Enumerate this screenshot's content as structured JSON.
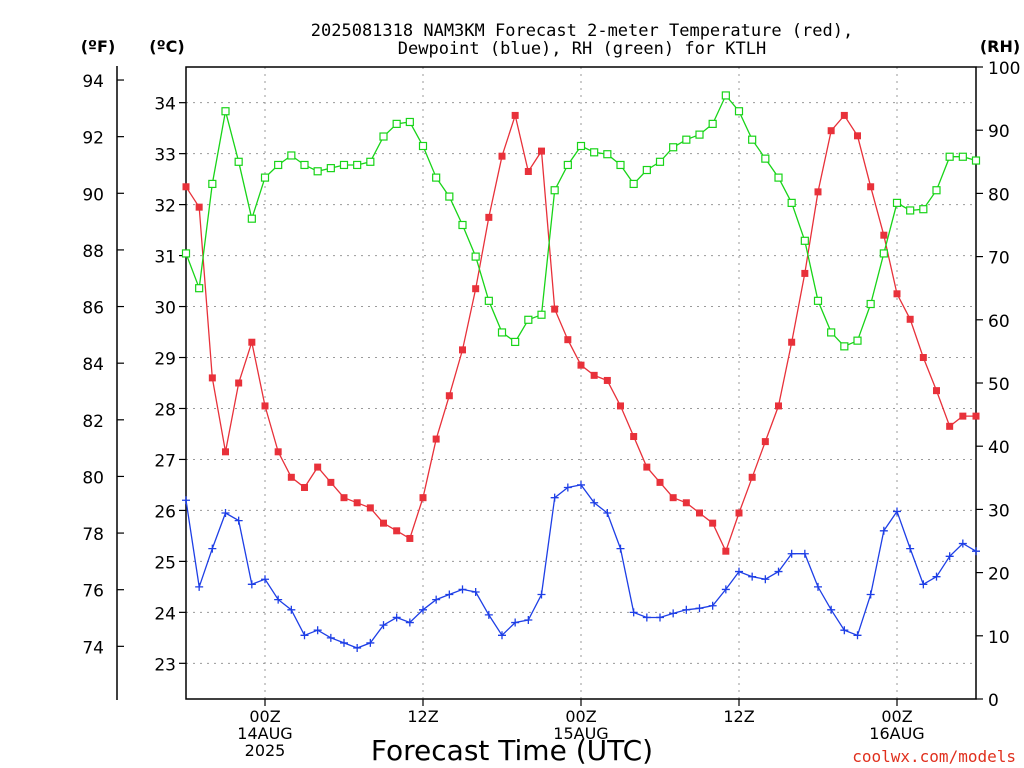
{
  "chart_data": {
    "type": "line",
    "title_line1": "2025081318 NAM3KM Forecast 2-meter Temperature (red),",
    "title_line2": "Dewpoint (blue), RH (green) for KTLH",
    "xlabel": "Forecast Time (UTC)",
    "unit_f": "(ºF)",
    "unit_c": "(ºC)",
    "unit_rh": "(RH)",
    "credit": "coolwx.com/models",
    "x_ticks": [
      {
        "hour": 6,
        "lines": [
          "00Z",
          "14AUG",
          "2025"
        ]
      },
      {
        "hour": 18,
        "lines": [
          "12Z"
        ]
      },
      {
        "hour": 30,
        "lines": [
          "00Z",
          "15AUG"
        ]
      },
      {
        "hour": 42,
        "lines": [
          "12Z"
        ]
      },
      {
        "hour": 54,
        "lines": [
          "00Z",
          "16AUG"
        ]
      }
    ],
    "xlim": [
      0,
      60
    ],
    "celsius_ticks": [
      23,
      24,
      25,
      26,
      27,
      28,
      29,
      30,
      31,
      32,
      33,
      34
    ],
    "celsius_lim": [
      22.3,
      34.7
    ],
    "fahrenheit_ticks": [
      74,
      76,
      78,
      80,
      82,
      84,
      86,
      88,
      90,
      92,
      94
    ],
    "rh_ticks": [
      0,
      10,
      20,
      30,
      40,
      50,
      60,
      70,
      80,
      90,
      100
    ],
    "rh_lim": [
      0,
      100
    ],
    "grid": true,
    "colors": {
      "temperature": "#e8313a",
      "dewpoint": "#1e3fe6",
      "rh": "#18d418",
      "grid": "#9a9a9a"
    },
    "series": [
      {
        "name": "Temperature",
        "axis": "celsius",
        "marker": "filled-square",
        "x": [
          0,
          1,
          2,
          3,
          4,
          5,
          6,
          7,
          8,
          9,
          10,
          11,
          12,
          13,
          14,
          15,
          16,
          17,
          18,
          19,
          20,
          21,
          22,
          23,
          24,
          25,
          26,
          27,
          28,
          29,
          30,
          31,
          32,
          33,
          34,
          35,
          36,
          37,
          38,
          39,
          40,
          41,
          42,
          43,
          44,
          45,
          46,
          47,
          48,
          49,
          50,
          51,
          52,
          53,
          54,
          55,
          56,
          57,
          58,
          59,
          60
        ],
        "values": [
          32.35,
          31.95,
          28.6,
          27.15,
          28.5,
          29.3,
          28.05,
          27.15,
          26.65,
          26.45,
          26.85,
          26.55,
          26.25,
          26.15,
          26.05,
          25.75,
          25.6,
          25.45,
          26.25,
          27.4,
          28.25,
          29.15,
          30.35,
          31.75,
          32.95,
          33.75,
          32.65,
          33.05,
          29.95,
          29.35,
          28.85,
          28.65,
          28.55,
          28.05,
          27.45,
          26.85,
          26.55,
          26.25,
          26.15,
          25.95,
          25.75,
          25.2,
          25.95,
          26.65,
          27.35,
          28.05,
          29.3,
          30.65,
          32.25,
          33.45,
          33.75,
          33.35,
          32.35,
          31.4,
          30.25,
          29.75,
          29.0,
          28.35,
          27.65,
          27.85,
          27.85
        ]
      },
      {
        "name": "Dewpoint",
        "axis": "celsius",
        "marker": "plus",
        "x": [
          0,
          1,
          2,
          3,
          4,
          5,
          6,
          7,
          8,
          9,
          10,
          11,
          12,
          13,
          14,
          15,
          16,
          17,
          18,
          19,
          20,
          21,
          22,
          23,
          24,
          25,
          26,
          27,
          28,
          29,
          30,
          31,
          32,
          33,
          34,
          35,
          36,
          37,
          38,
          39,
          40,
          41,
          42,
          43,
          44,
          45,
          46,
          47,
          48,
          49,
          50,
          51,
          52,
          53,
          54,
          55,
          56,
          57,
          58,
          59,
          60
        ],
        "values": [
          26.2,
          24.5,
          25.25,
          25.95,
          25.8,
          24.55,
          24.65,
          24.25,
          24.05,
          23.55,
          23.65,
          23.5,
          23.4,
          23.3,
          23.4,
          23.75,
          23.9,
          23.8,
          24.05,
          24.25,
          24.35,
          24.45,
          24.4,
          23.95,
          23.55,
          23.8,
          23.85,
          24.35,
          26.25,
          26.45,
          26.5,
          26.15,
          25.95,
          25.25,
          24.0,
          23.9,
          23.9,
          23.98,
          24.05,
          24.08,
          24.13,
          24.45,
          24.8,
          24.7,
          24.65,
          24.8,
          25.15,
          25.15,
          24.5,
          24.05,
          23.65,
          23.55,
          24.35,
          25.6,
          25.98,
          25.25,
          24.55,
          24.7,
          25.1,
          25.35,
          25.2
        ]
      },
      {
        "name": "RH",
        "axis": "rh",
        "marker": "open-square",
        "x": [
          0,
          1,
          2,
          3,
          4,
          5,
          6,
          7,
          8,
          9,
          10,
          11,
          12,
          13,
          14,
          15,
          16,
          17,
          18,
          19,
          20,
          21,
          22,
          23,
          24,
          25,
          26,
          27,
          28,
          29,
          30,
          31,
          32,
          33,
          34,
          35,
          36,
          37,
          38,
          39,
          40,
          41,
          42,
          43,
          44,
          45,
          46,
          47,
          48,
          49,
          50,
          51,
          52,
          53,
          54,
          55,
          56,
          57,
          58,
          59,
          60
        ],
        "values": [
          70.5,
          65,
          81.5,
          93,
          85,
          76,
          82.5,
          84.5,
          86,
          84.5,
          83.5,
          84,
          84.5,
          84.5,
          85,
          89,
          91,
          91.3,
          87.5,
          82.5,
          79.5,
          75,
          70,
          63,
          58,
          56.5,
          60,
          60.8,
          80.5,
          84.5,
          87.5,
          86.5,
          86.2,
          84.5,
          81.5,
          83.7,
          85,
          87.3,
          88.5,
          89.3,
          91,
          95.5,
          93,
          88.5,
          85.5,
          82.5,
          78.5,
          72.5,
          63,
          58,
          55.8,
          56.7,
          62.5,
          70.5,
          78.5,
          77.3,
          77.5,
          80.5,
          85.8,
          85.8,
          85.2
        ]
      }
    ]
  }
}
